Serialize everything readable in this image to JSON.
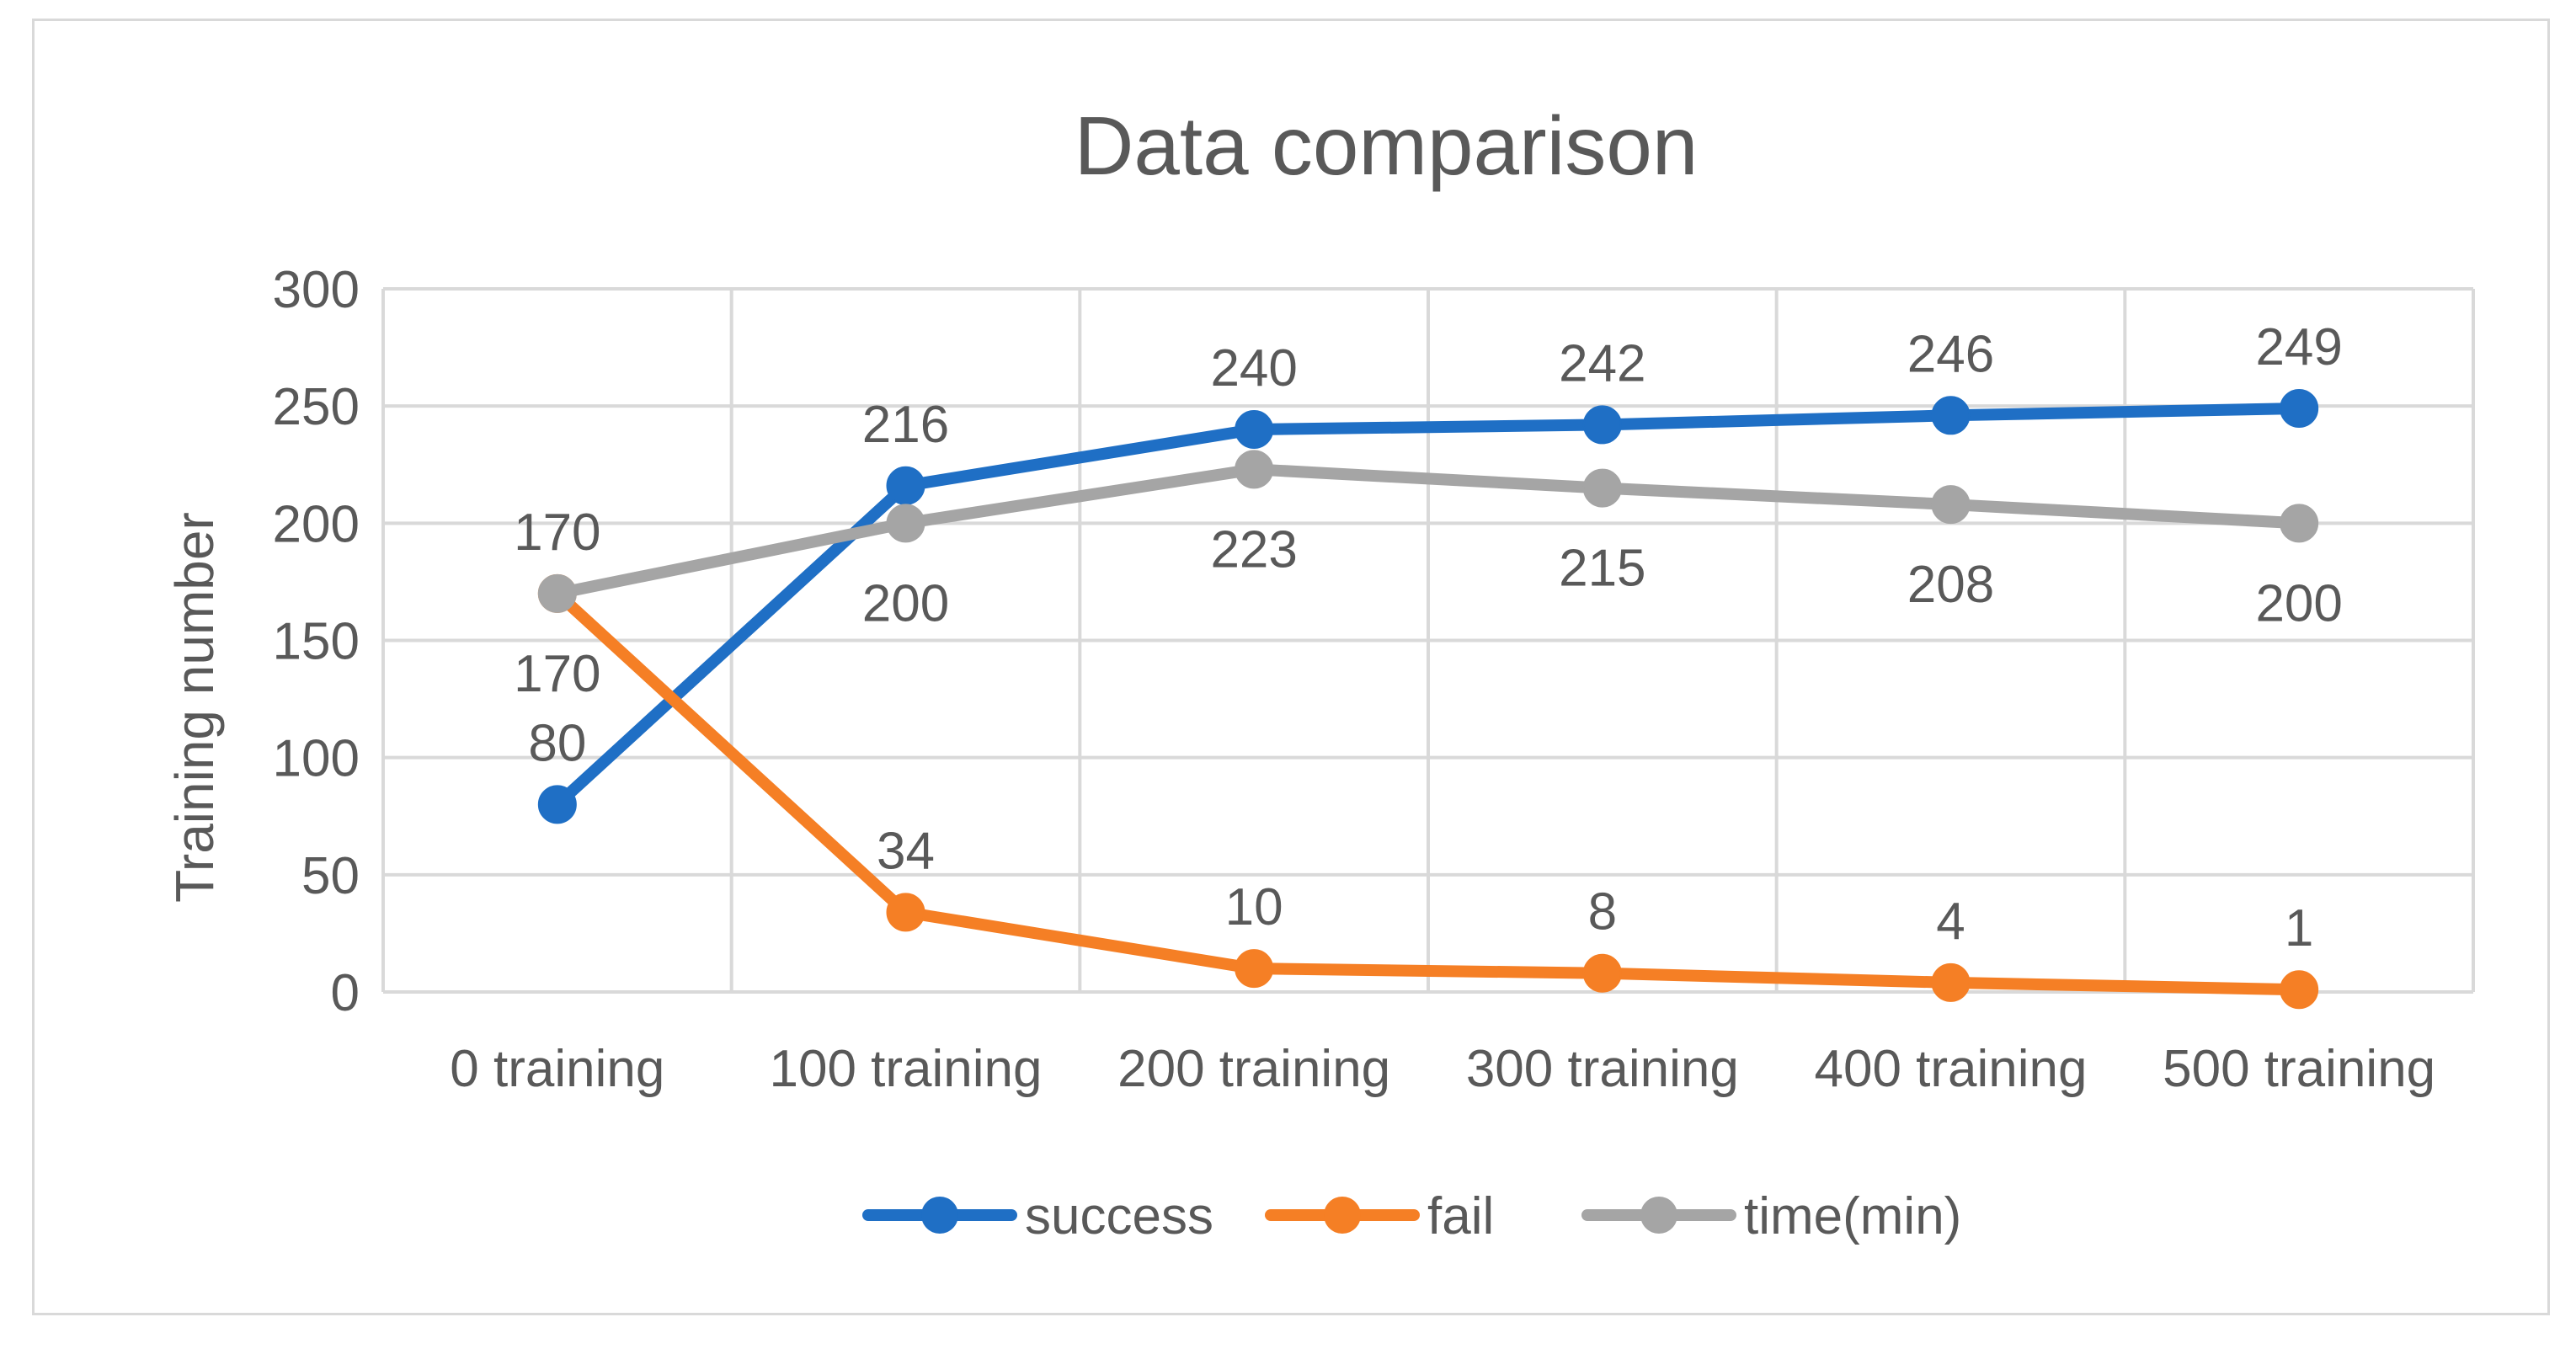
{
  "chart_data": {
    "type": "line",
    "title": "Data comparison",
    "xlabel": "",
    "ylabel": "Training number",
    "categories": [
      "0 training",
      "100 training",
      "200 training",
      "300 training",
      "400 training",
      "500 training"
    ],
    "ylim": [
      0,
      300
    ],
    "yticks": [
      0,
      50,
      100,
      150,
      200,
      250,
      300
    ],
    "grid": true,
    "legend_position": "bottom",
    "series": [
      {
        "name": "success",
        "color": "#1f6fc5",
        "values": [
          80,
          216,
          240,
          242,
          246,
          249
        ],
        "label_position": "above"
      },
      {
        "name": "fail",
        "color": "#f57f25",
        "values": [
          170,
          34,
          10,
          8,
          4,
          1
        ],
        "label_position": "above"
      },
      {
        "name": "time(min)",
        "color": "#a5a5a5",
        "values": [
          170,
          200,
          223,
          215,
          208,
          200
        ],
        "label_position": "below"
      }
    ]
  }
}
